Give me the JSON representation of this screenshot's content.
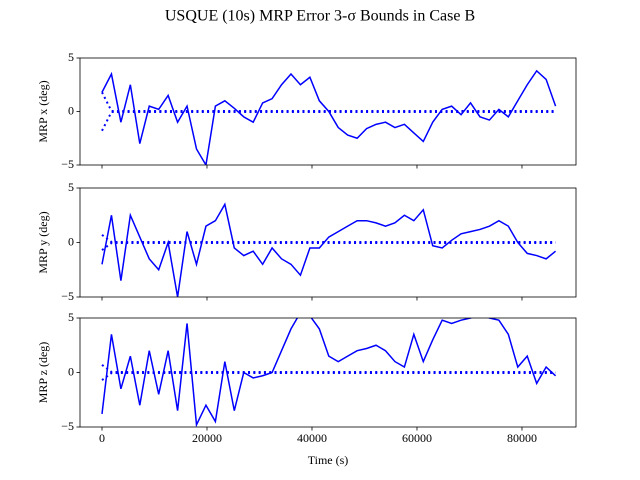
{
  "title": "USQUE (10s) MRP Error 3-σ Bounds in Case B",
  "chart_data": [
    {
      "type": "line",
      "ylabel": "MRP x (deg)",
      "x": [
        0,
        1800,
        3600,
        5400,
        7200,
        9000,
        10800,
        12600,
        14400,
        16200,
        18000,
        19800,
        21600,
        23400,
        25200,
        27000,
        28800,
        30600,
        32400,
        34200,
        36000,
        37800,
        39600,
        41400,
        43200,
        45000,
        46800,
        48600,
        50400,
        52200,
        54000,
        55800,
        57600,
        59400,
        61200,
        63000,
        64800,
        66600,
        68400,
        70200,
        72000,
        73800,
        75600,
        77400,
        79200,
        81000,
        82800,
        84600,
        86400
      ],
      "series": [
        {
          "color": "#0000ff",
          "style": "solid",
          "values": [
            1.8,
            3.5,
            -1.0,
            2.5,
            -3.0,
            0.5,
            0.2,
            1.5,
            -1.0,
            0.5,
            -3.5,
            -5.0,
            0.5,
            1.0,
            0.3,
            -0.5,
            -1.0,
            0.8,
            1.2,
            2.5,
            3.5,
            2.5,
            3.2,
            1.0,
            0.0,
            -1.5,
            -2.2,
            -2.5,
            -1.6,
            -1.2,
            -1.0,
            -1.5,
            -1.2,
            -2.0,
            -2.8,
            -1.0,
            0.2,
            0.5,
            -0.3,
            0.8,
            -0.5,
            -0.8,
            0.2,
            -0.5,
            1.0,
            2.5,
            3.8,
            3.0,
            0.5
          ]
        },
        {
          "color": "#0000ff",
          "style": "dotted",
          "values": [
            1.8,
            0.05,
            0.05,
            0.05,
            0.05,
            0.05,
            0.05,
            0.05,
            0.05,
            0.05,
            0.05,
            0.05,
            0.05,
            0.05,
            0.05,
            0.05,
            0.05,
            0.05,
            0.05,
            0.05,
            0.05,
            0.05,
            0.05,
            0.05,
            0.05,
            0.05,
            0.05,
            0.05,
            0.05,
            0.05,
            0.05,
            0.05,
            0.05,
            0.05,
            0.05,
            0.05,
            0.05,
            0.05,
            0.05,
            0.05,
            0.05,
            0.05,
            0.05,
            0.05,
            0.05,
            0.05,
            0.05,
            0.05,
            0.05
          ]
        },
        {
          "color": "#0000ff",
          "style": "dotted",
          "values": [
            -1.8,
            -0.05,
            -0.05,
            -0.05,
            -0.05,
            -0.05,
            -0.05,
            -0.05,
            -0.05,
            -0.05,
            -0.05,
            -0.05,
            -0.05,
            -0.05,
            -0.05,
            -0.05,
            -0.05,
            -0.05,
            -0.05,
            -0.05,
            -0.05,
            -0.05,
            -0.05,
            -0.05,
            -0.05,
            -0.05,
            -0.05,
            -0.05,
            -0.05,
            -0.05,
            -0.05,
            -0.05,
            -0.05,
            -0.05,
            -0.05,
            -0.05,
            -0.05,
            -0.05,
            -0.05,
            -0.05,
            -0.05,
            -0.05,
            -0.05,
            -0.05,
            -0.05,
            -0.05,
            -0.05,
            -0.05,
            -0.05
          ]
        }
      ],
      "xlim": [
        -4190,
        90290
      ],
      "xticks": [
        0,
        20000,
        40000,
        60000,
        80000
      ],
      "ylim": [
        -5,
        5
      ],
      "yticks": [
        {
          "value": -5,
          "label": "−5"
        },
        0,
        5
      ]
    },
    {
      "type": "line",
      "ylabel": "MRP y (deg)",
      "x": [
        0,
        1800,
        3600,
        5400,
        7200,
        9000,
        10800,
        12600,
        14400,
        16200,
        18000,
        19800,
        21600,
        23400,
        25200,
        27000,
        28800,
        30600,
        32400,
        34200,
        36000,
        37800,
        39600,
        41400,
        43200,
        45000,
        46800,
        48600,
        50400,
        52200,
        54000,
        55800,
        57600,
        59400,
        61200,
        63000,
        64800,
        66600,
        68400,
        70200,
        72000,
        73800,
        75600,
        77400,
        79200,
        81000,
        82800,
        84600,
        86400
      ],
      "series": [
        {
          "color": "#0000ff",
          "style": "solid",
          "values": [
            -2.0,
            2.5,
            -3.5,
            2.5,
            0.5,
            -1.5,
            -2.5,
            0.0,
            -5.0,
            1.0,
            -2.0,
            1.5,
            2.0,
            3.5,
            -0.5,
            -1.2,
            -0.8,
            -2.0,
            -0.5,
            -1.5,
            -2.0,
            -3.0,
            -0.5,
            -0.5,
            0.5,
            1.0,
            1.5,
            2.0,
            2.0,
            1.8,
            1.5,
            1.8,
            2.5,
            2.0,
            3.0,
            -0.3,
            -0.5,
            0.2,
            0.8,
            1.0,
            1.2,
            1.5,
            2.0,
            1.5,
            0.0,
            -1.0,
            -1.2,
            -1.5,
            -0.8
          ]
        },
        {
          "color": "#0000ff",
          "style": "dotted",
          "values": [
            0.7,
            0.05,
            0.05,
            0.05,
            0.05,
            0.05,
            0.05,
            0.05,
            0.05,
            0.05,
            0.05,
            0.05,
            0.05,
            0.05,
            0.05,
            0.05,
            0.05,
            0.05,
            0.05,
            0.05,
            0.05,
            0.05,
            0.05,
            0.05,
            0.05,
            0.05,
            0.05,
            0.05,
            0.05,
            0.05,
            0.05,
            0.05,
            0.05,
            0.05,
            0.05,
            0.05,
            0.05,
            0.05,
            0.05,
            0.05,
            0.05,
            0.05,
            0.05,
            0.05,
            0.05,
            0.05,
            0.05,
            0.05,
            0.05
          ]
        },
        {
          "color": "#0000ff",
          "style": "dotted",
          "values": [
            -0.7,
            -0.05,
            -0.05,
            -0.05,
            -0.05,
            -0.05,
            -0.05,
            -0.05,
            -0.05,
            -0.05,
            -0.05,
            -0.05,
            -0.05,
            -0.05,
            -0.05,
            -0.05,
            -0.05,
            -0.05,
            -0.05,
            -0.05,
            -0.05,
            -0.05,
            -0.05,
            -0.05,
            -0.05,
            -0.05,
            -0.05,
            -0.05,
            -0.05,
            -0.05,
            -0.05,
            -0.05,
            -0.05,
            -0.05,
            -0.05,
            -0.05,
            -0.05,
            -0.05,
            -0.05,
            -0.05,
            -0.05,
            -0.05,
            -0.05,
            -0.05,
            -0.05,
            -0.05,
            -0.05,
            -0.05,
            -0.05
          ]
        }
      ],
      "xlim": [
        -4190,
        90290
      ],
      "xticks": [
        0,
        20000,
        40000,
        60000,
        80000
      ],
      "ylim": [
        -5,
        5
      ],
      "yticks": [
        {
          "value": -5,
          "label": "−5"
        },
        0,
        5
      ]
    },
    {
      "type": "line",
      "ylabel": "MRP z (deg)",
      "xlabel": "Time (s)",
      "x": [
        0,
        1800,
        3600,
        5400,
        7200,
        9000,
        10800,
        12600,
        14400,
        16200,
        18000,
        19800,
        21600,
        23400,
        25200,
        27000,
        28800,
        30600,
        32400,
        34200,
        36000,
        37800,
        39600,
        41400,
        43200,
        45000,
        46800,
        48600,
        50400,
        52200,
        54000,
        55800,
        57600,
        59400,
        61200,
        63000,
        64800,
        66600,
        68400,
        70200,
        72000,
        73800,
        75600,
        77400,
        79200,
        81000,
        82800,
        84600,
        86400
      ],
      "series": [
        {
          "color": "#0000ff",
          "style": "solid",
          "values": [
            -3.8,
            3.5,
            -1.5,
            1.5,
            -3.0,
            2.0,
            -2.0,
            2.0,
            -3.5,
            4.5,
            -4.8,
            -3.0,
            -4.5,
            1.0,
            -3.5,
            0.0,
            -0.5,
            -0.3,
            0.0,
            2.0,
            4.0,
            5.5,
            5.2,
            4.0,
            1.5,
            1.0,
            1.5,
            2.0,
            2.2,
            2.5,
            2.0,
            1.0,
            0.5,
            3.5,
            1.0,
            3.0,
            4.8,
            4.5,
            4.8,
            5.0,
            5.3,
            5.0,
            4.8,
            3.5,
            0.5,
            1.5,
            -1.0,
            0.5,
            -0.3
          ]
        },
        {
          "color": "#0000ff",
          "style": "dotted",
          "values": [
            0.7,
            0.05,
            0.05,
            0.05,
            0.05,
            0.05,
            0.05,
            0.05,
            0.05,
            0.05,
            0.05,
            0.05,
            0.05,
            0.05,
            0.05,
            0.05,
            0.05,
            0.05,
            0.05,
            0.05,
            0.05,
            0.05,
            0.05,
            0.05,
            0.05,
            0.05,
            0.05,
            0.05,
            0.05,
            0.05,
            0.05,
            0.05,
            0.05,
            0.05,
            0.05,
            0.05,
            0.05,
            0.05,
            0.05,
            0.05,
            0.05,
            0.05,
            0.05,
            0.05,
            0.05,
            0.05,
            0.05,
            0.05,
            0.05
          ]
        },
        {
          "color": "#0000ff",
          "style": "dotted",
          "values": [
            -0.7,
            -0.05,
            -0.05,
            -0.05,
            -0.05,
            -0.05,
            -0.05,
            -0.05,
            -0.05,
            -0.05,
            -0.05,
            -0.05,
            -0.05,
            -0.05,
            -0.05,
            -0.05,
            -0.05,
            -0.05,
            -0.05,
            -0.05,
            -0.05,
            -0.05,
            -0.05,
            -0.05,
            -0.05,
            -0.05,
            -0.05,
            -0.05,
            -0.05,
            -0.05,
            -0.05,
            -0.05,
            -0.05,
            -0.05,
            -0.05,
            -0.05,
            -0.05,
            -0.05,
            -0.05,
            -0.05,
            -0.05,
            -0.05,
            -0.05,
            -0.05,
            -0.05,
            -0.05,
            -0.05,
            -0.05,
            -0.05
          ]
        }
      ],
      "xlim": [
        -4190,
        90290
      ],
      "xticks": [
        0,
        20000,
        40000,
        60000,
        80000
      ],
      "ylim": [
        -5,
        5
      ],
      "yticks": [
        {
          "value": -5,
          "label": "−5"
        },
        0,
        5
      ]
    }
  ]
}
